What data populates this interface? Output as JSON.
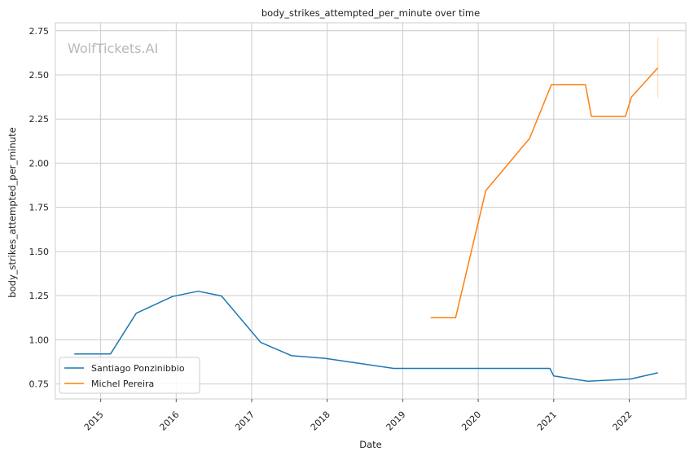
{
  "chart_data": {
    "type": "line",
    "title": "body_strikes_attempted_per_minute over time",
    "xlabel": "Date",
    "ylabel": "body_strikes_attempted_per_minute",
    "watermark": "WolfTickets.AI",
    "xlim": [
      2014.4,
      2022.75
    ],
    "ylim": [
      0.665,
      2.795
    ],
    "x_ticks": [
      {
        "value": 2015,
        "label": "2015"
      },
      {
        "value": 2016,
        "label": "2016"
      },
      {
        "value": 2017,
        "label": "2017"
      },
      {
        "value": 2018,
        "label": "2018"
      },
      {
        "value": 2019,
        "label": "2019"
      },
      {
        "value": 2020,
        "label": "2020"
      },
      {
        "value": 2021,
        "label": "2021"
      },
      {
        "value": 2022,
        "label": "2022"
      }
    ],
    "y_ticks": [
      {
        "value": 0.75,
        "label": "0.75"
      },
      {
        "value": 1.0,
        "label": "1.00"
      },
      {
        "value": 1.25,
        "label": "1.25"
      },
      {
        "value": 1.5,
        "label": "1.50"
      },
      {
        "value": 1.75,
        "label": "1.75"
      },
      {
        "value": 2.0,
        "label": "2.00"
      },
      {
        "value": 2.25,
        "label": "2.25"
      },
      {
        "value": 2.5,
        "label": "2.50"
      },
      {
        "value": 2.75,
        "label": "2.75"
      }
    ],
    "grid": true,
    "legend_position": "lower-left",
    "series": [
      {
        "name": "Santiago Ponzinibbio",
        "color": "#1f77b4",
        "x": [
          2014.65,
          2015.13,
          2015.47,
          2015.95,
          2016.29,
          2016.6,
          2017.12,
          2017.53,
          2017.97,
          2018.88,
          2020.95,
          2021.0,
          2021.45,
          2021.9,
          2022.02,
          2022.38
        ],
        "y": [
          0.92,
          0.92,
          1.15,
          1.245,
          1.275,
          1.248,
          0.985,
          0.91,
          0.895,
          0.838,
          0.838,
          0.795,
          0.765,
          0.775,
          0.778,
          0.813
        ]
      },
      {
        "name": "Michel Pereira",
        "color": "#ff7f0e",
        "x": [
          2019.37,
          2019.7,
          2020.1,
          2020.68,
          2020.97,
          2021.42,
          2021.5,
          2021.95,
          2022.03,
          2022.38
        ],
        "y": [
          1.125,
          1.125,
          1.845,
          2.14,
          2.445,
          2.445,
          2.265,
          2.265,
          2.375,
          2.54
        ]
      }
    ],
    "error_bar": {
      "series": "Michel Pereira",
      "x": 2022.38,
      "low": 2.37,
      "high": 2.71
    }
  }
}
